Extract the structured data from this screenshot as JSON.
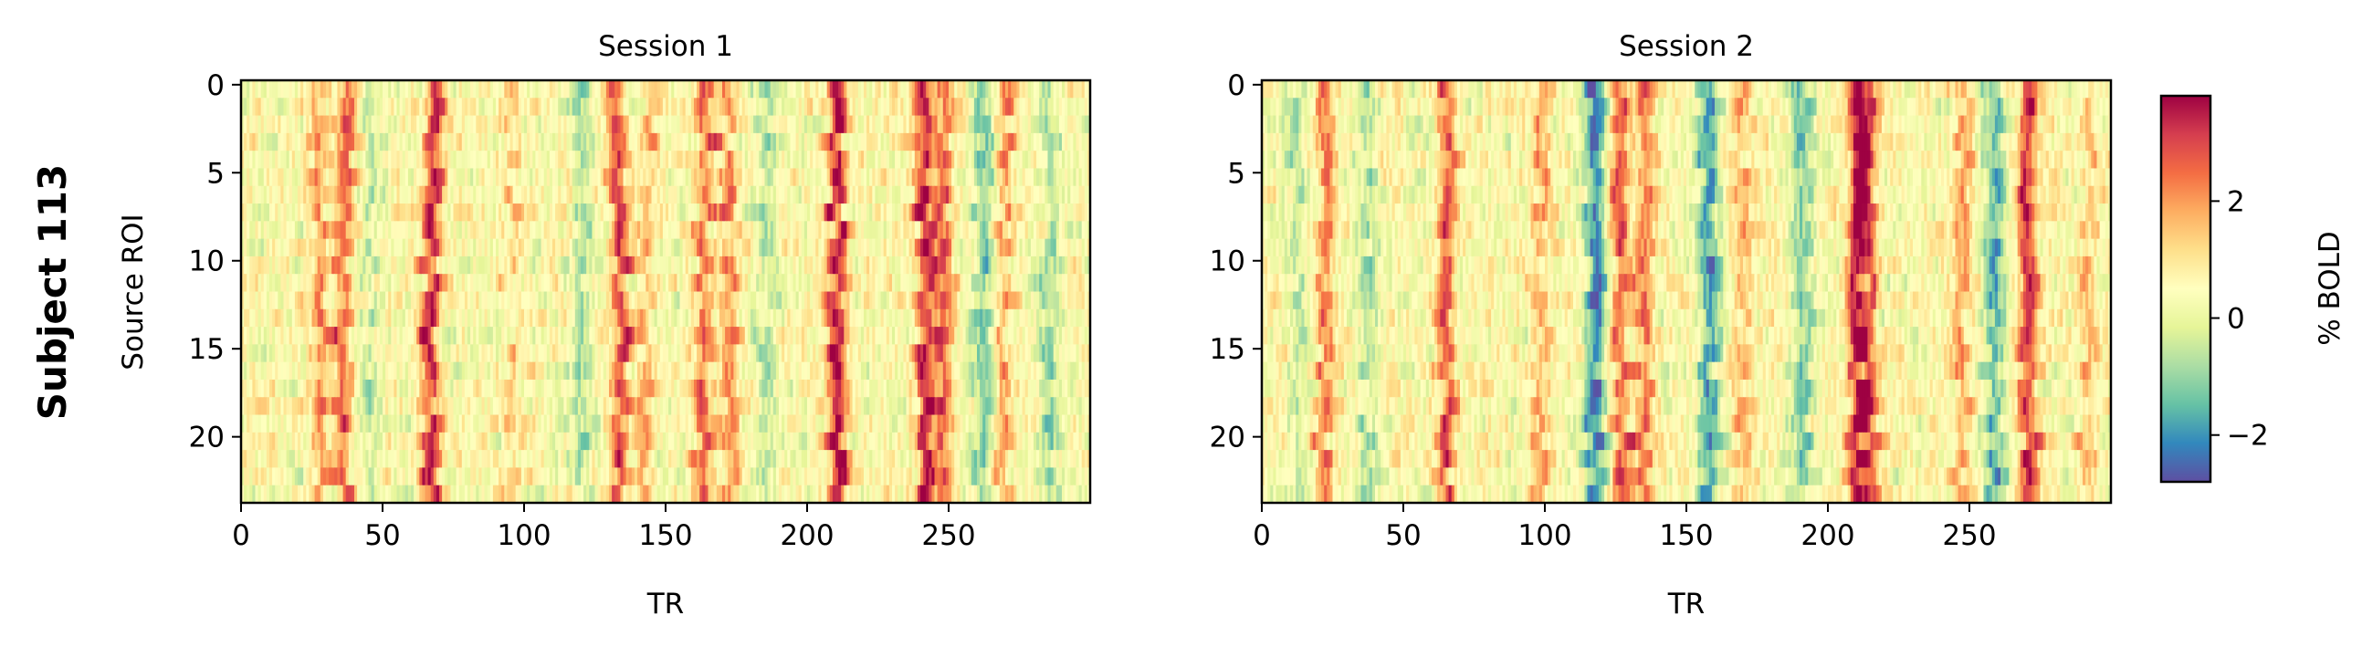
{
  "suptitle": "Subject 113",
  "chart_data": [
    {
      "type": "heatmap",
      "title": "Session 1",
      "xlabel": "TR",
      "ylabel": "Source ROI",
      "n_rows": 24,
      "n_cols": 300,
      "xlim": [
        0,
        299
      ],
      "ylim": [
        23,
        0
      ],
      "xticks": [
        "0",
        "50",
        "100",
        "150",
        "200",
        "250"
      ],
      "xtick_values": [
        0,
        50,
        100,
        150,
        200,
        250
      ],
      "yticks": [
        "0",
        "5",
        "10",
        "15",
        "20"
      ],
      "ytick_values": [
        0,
        5,
        10,
        15,
        20
      ],
      "peaks": [
        {
          "tr": 27,
          "amp": 1.6
        },
        {
          "tr": 36,
          "amp": 2.1
        },
        {
          "tr": 67,
          "amp": 2.9
        },
        {
          "tr": 95,
          "amp": 0.8
        },
        {
          "tr": 133,
          "amp": 2.4
        },
        {
          "tr": 143,
          "amp": 1.0
        },
        {
          "tr": 163,
          "amp": 2.0
        },
        {
          "tr": 172,
          "amp": 1.6
        },
        {
          "tr": 210,
          "amp": 3.2
        },
        {
          "tr": 241,
          "amp": 3.0
        },
        {
          "tr": 248,
          "amp": 2.0
        },
        {
          "tr": 269,
          "amp": 1.4
        }
      ],
      "troughs": [
        {
          "tr": 45,
          "amp": -0.8
        },
        {
          "tr": 120,
          "amp": -1.0
        },
        {
          "tr": 185,
          "amp": -1.0
        },
        {
          "tr": 262,
          "amp": -1.6
        },
        {
          "tr": 285,
          "amp": -1.2
        }
      ],
      "seed": 11
    },
    {
      "type": "heatmap",
      "title": "Session 2",
      "xlabel": "TR",
      "ylabel": "",
      "n_rows": 24,
      "n_cols": 300,
      "xlim": [
        0,
        299
      ],
      "ylim": [
        23,
        0
      ],
      "xticks": [
        "0",
        "50",
        "100",
        "150",
        "200",
        "250"
      ],
      "xtick_values": [
        0,
        50,
        100,
        150,
        200,
        250
      ],
      "yticks": [
        "0",
        "5",
        "10",
        "15",
        "20"
      ],
      "ytick_values": [
        0,
        5,
        10,
        15,
        20
      ],
      "peaks": [
        {
          "tr": 22,
          "amp": 2.0
        },
        {
          "tr": 65,
          "amp": 2.4
        },
        {
          "tr": 98,
          "amp": 1.4
        },
        {
          "tr": 126,
          "amp": 2.4
        },
        {
          "tr": 135,
          "amp": 1.8
        },
        {
          "tr": 169,
          "amp": 1.2
        },
        {
          "tr": 210,
          "amp": 3.0
        },
        {
          "tr": 214,
          "amp": 2.2
        },
        {
          "tr": 247,
          "amp": 1.4
        },
        {
          "tr": 270,
          "amp": 2.8
        },
        {
          "tr": 292,
          "amp": 1.0
        }
      ],
      "troughs": [
        {
          "tr": 12,
          "amp": -0.8
        },
        {
          "tr": 37,
          "amp": -1.0
        },
        {
          "tr": 117,
          "amp": -2.6
        },
        {
          "tr": 157,
          "amp": -2.2
        },
        {
          "tr": 190,
          "amp": -1.6
        },
        {
          "tr": 258,
          "amp": -2.0
        }
      ],
      "seed": 29
    }
  ],
  "colorbar": {
    "label": "% BOLD",
    "vmin": -2.8,
    "vmax": 3.8,
    "ticks": [
      "−2",
      "0",
      "2"
    ],
    "tick_values": [
      -2,
      0,
      2
    ],
    "colormap": "Spectral_r",
    "colors": [
      "#5e4fa2",
      "#3288bd",
      "#66c2a5",
      "#abdda4",
      "#e6f598",
      "#ffffbf",
      "#fee08b",
      "#fdae61",
      "#f46d43",
      "#d53e4f",
      "#9e0142"
    ]
  }
}
